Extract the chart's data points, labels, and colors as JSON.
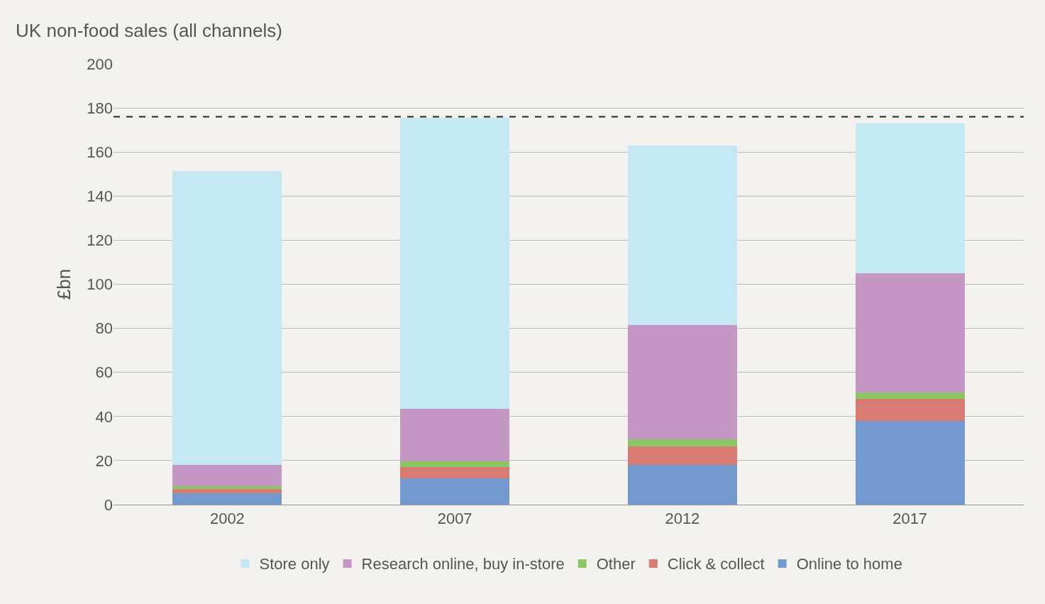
{
  "chart_data": {
    "type": "bar",
    "title": "UK non-food sales (all channels)",
    "ylabel": "£bn",
    "categories": [
      "2002",
      "2007",
      "2012",
      "2017"
    ],
    "stacked": true,
    "series": [
      {
        "name": "Online to home",
        "color": "#7399cf",
        "values": [
          5,
          12,
          18,
          38
        ]
      },
      {
        "name": "Click & collect",
        "color": "#d87b72",
        "values": [
          2,
          5,
          8.5,
          10
        ]
      },
      {
        "name": "Other",
        "color": "#8cc665",
        "values": [
          1.5,
          2.5,
          3,
          3
        ]
      },
      {
        "name": "Research online, buy in-store",
        "color": "#c597c4",
        "values": [
          9.5,
          24,
          52,
          54
        ]
      },
      {
        "name": "Store only",
        "color": "#c5e8f5",
        "values": [
          133.5,
          132,
          81.5,
          68
        ]
      }
    ],
    "ylim": [
      0,
      200
    ],
    "yticks": [
      0,
      20,
      40,
      60,
      80,
      100,
      120,
      140,
      160,
      180,
      200
    ],
    "grid": "y",
    "legend": "bottom",
    "ref_lines": [
      {
        "axis": "y",
        "value": 176,
        "color": "#222222",
        "line_style": "dashed"
      }
    ]
  }
}
